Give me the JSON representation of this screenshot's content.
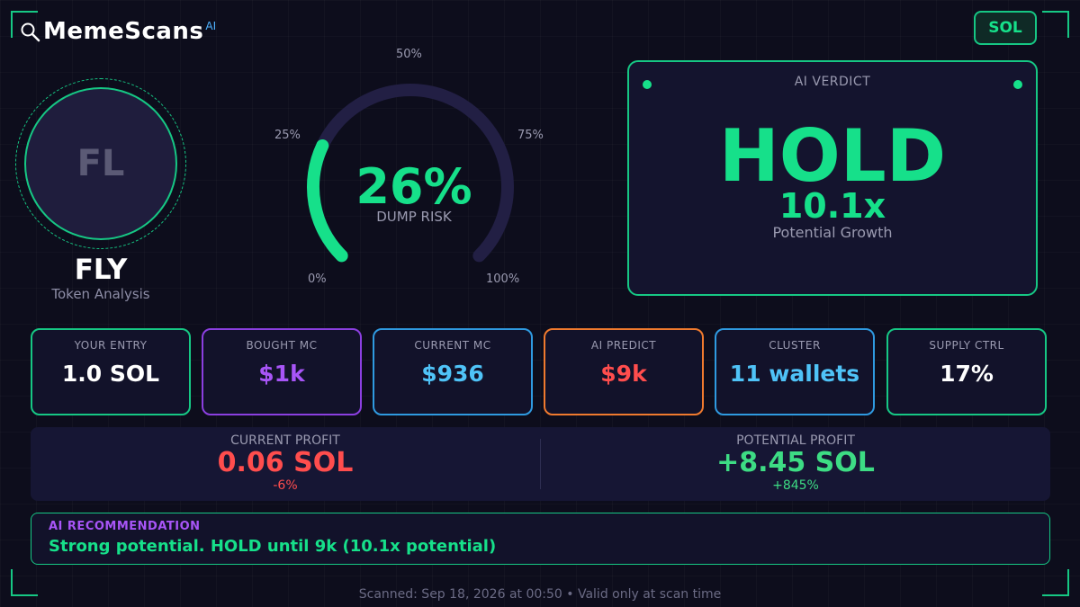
{
  "brand": {
    "name": "MemeScans",
    "suffix": "AI",
    "icon": "search-icon"
  },
  "chain_badge": "SOL",
  "token": {
    "initials": "FL",
    "symbol": "FLY",
    "subtitle": "Token Analysis"
  },
  "gauge": {
    "value": 26,
    "value_text": "26%",
    "label": "DUMP RISK",
    "ticks": {
      "t0": "0%",
      "t25": "25%",
      "t50": "50%",
      "t75": "75%",
      "t100": "100%"
    },
    "fill_color": "#16e08a",
    "track_color": "#221f44"
  },
  "verdict": {
    "title": "AI VERDICT",
    "action": "HOLD",
    "multiplier": "10.1x",
    "subtitle": "Potential Growth"
  },
  "stats": [
    {
      "label": "YOUR ENTRY",
      "value": "1.0 SOL",
      "color": "#ffffff",
      "border": "#16c784"
    },
    {
      "label": "BOUGHT MC",
      "value": "$1k",
      "color": "#a855f7",
      "border": "#8b3fe0"
    },
    {
      "label": "CURRENT MC",
      "value": "$936",
      "color": "#4fc3f7",
      "border": "#2f9ae0"
    },
    {
      "label": "AI PREDICT",
      "value": "$9k",
      "color": "#ff4d4d",
      "border": "#f07a2e"
    },
    {
      "label": "CLUSTER",
      "value": "11 wallets",
      "color": "#4fc3f7",
      "border": "#2f9ae0"
    },
    {
      "label": "SUPPLY CTRL",
      "value": "17%",
      "color": "#ffffff",
      "border": "#16c784"
    }
  ],
  "profit": {
    "current": {
      "label": "CURRENT PROFIT",
      "value": "0.06 SOL",
      "pct": "-6%",
      "color": "#ff4d4d"
    },
    "potential": {
      "label": "POTENTIAL PROFIT",
      "value": "+8.45 SOL",
      "pct": "+845%",
      "color": "#3ddc84"
    }
  },
  "recommendation": {
    "title": "AI RECOMMENDATION",
    "text": "Strong potential. HOLD until 9k (10.1x potential)"
  },
  "footer": "Scanned: Sep 18, 2026 at 00:50  •  Valid only at scan time"
}
